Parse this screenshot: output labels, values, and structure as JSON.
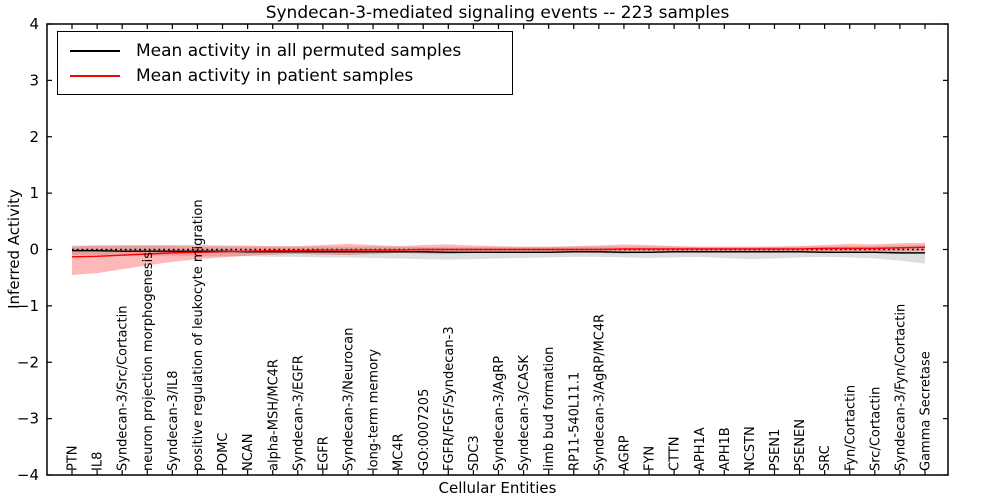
{
  "chart_data": {
    "type": "line",
    "title": "Syndecan-3-mediated signaling events -- 223 samples",
    "xlabel": "Cellular Entities",
    "ylabel": "Inferred Activity",
    "ylim": [
      -4,
      4
    ],
    "yticks": [
      -4,
      -3,
      -2,
      -1,
      0,
      1,
      2,
      3,
      4
    ],
    "grid": false,
    "legend_position": "upper left",
    "zero_line": {
      "value": 0,
      "style": "dotted",
      "color": "#000000"
    },
    "categories": [
      "PTN",
      "IL8",
      "Syndecan-3/Src/Cortactin",
      "neuron projection morphogenesis",
      "Syndecan-3/IL8",
      "positive regulation of leukocyte migration",
      "POMC",
      "NCAN",
      "alpha-MSH/MC4R",
      "Syndecan-3/EGFR",
      "EGFR",
      "Syndecan-3/Neurocan",
      "long-term memory",
      "MC4R",
      "GO:0007205",
      "FGFR/FGF/Syndecan-3",
      "SDC3",
      "Syndecan-3/AgRP",
      "Syndecan-3/CASK",
      "limb bud formation",
      "RP11-540L11.1",
      "Syndecan-3/AgRP/MC4R",
      "AGRP",
      "FYN",
      "CTTN",
      "APH1A",
      "APH1B",
      "NCSTN",
      "PSEN1",
      "PSENEN",
      "SRC",
      "Fyn/Cortactin",
      "Src/Cortactin",
      "Syndecan-3/Fyn/Cortactin",
      "Gamma Secretase"
    ],
    "series": [
      {
        "name": "Mean activity in all permuted samples",
        "color": "#000000",
        "band_color": "rgba(0,0,0,0.13)",
        "values": [
          -0.02,
          -0.02,
          -0.03,
          -0.03,
          -0.03,
          -0.03,
          -0.03,
          -0.04,
          -0.04,
          -0.04,
          -0.04,
          -0.04,
          -0.04,
          -0.04,
          -0.04,
          -0.05,
          -0.05,
          -0.05,
          -0.05,
          -0.05,
          -0.04,
          -0.04,
          -0.05,
          -0.05,
          -0.04,
          -0.04,
          -0.04,
          -0.04,
          -0.04,
          -0.04,
          -0.05,
          -0.05,
          -0.05,
          -0.06,
          -0.06
        ],
        "band_upper": [
          0.07,
          0.07,
          0.06,
          0.06,
          0.06,
          0.05,
          0.05,
          0.05,
          0.05,
          0.05,
          0.05,
          0.05,
          0.05,
          0.05,
          0.04,
          0.04,
          0.04,
          0.04,
          0.04,
          0.04,
          0.05,
          0.05,
          0.05,
          0.05,
          0.05,
          0.04,
          0.04,
          0.04,
          0.05,
          0.05,
          0.05,
          0.06,
          0.06,
          0.07,
          0.08
        ],
        "band_lower": [
          -0.1,
          -0.1,
          -0.11,
          -0.11,
          -0.11,
          -0.12,
          -0.12,
          -0.12,
          -0.13,
          -0.13,
          -0.14,
          -0.14,
          -0.15,
          -0.16,
          -0.17,
          -0.18,
          -0.17,
          -0.16,
          -0.15,
          -0.14,
          -0.13,
          -0.13,
          -0.14,
          -0.15,
          -0.14,
          -0.13,
          -0.15,
          -0.17,
          -0.16,
          -0.14,
          -0.13,
          -0.14,
          -0.16,
          -0.2,
          -0.25
        ]
      },
      {
        "name": "Mean activity in patient samples",
        "color": "#ff0000",
        "band_color": "rgba(255,0,0,0.28)",
        "values": [
          -0.13,
          -0.12,
          -0.1,
          -0.08,
          -0.06,
          -0.05,
          -0.04,
          -0.03,
          -0.02,
          -0.02,
          -0.01,
          -0.01,
          -0.01,
          -0.01,
          0.0,
          0.0,
          0.0,
          0.0,
          0.0,
          0.0,
          0.0,
          0.0,
          0.01,
          0.01,
          0.01,
          0.01,
          0.01,
          0.01,
          0.01,
          0.01,
          0.02,
          0.02,
          0.02,
          0.03,
          0.04
        ],
        "band_upper": [
          0.05,
          0.07,
          0.08,
          0.08,
          0.08,
          0.08,
          0.07,
          0.07,
          0.06,
          0.06,
          0.08,
          0.1,
          0.08,
          0.06,
          0.08,
          0.09,
          0.07,
          0.06,
          0.05,
          0.05,
          0.06,
          0.07,
          0.09,
          0.08,
          0.06,
          0.05,
          0.05,
          0.05,
          0.05,
          0.06,
          0.08,
          0.1,
          0.09,
          0.11,
          0.12
        ],
        "band_lower": [
          -0.45,
          -0.42,
          -0.35,
          -0.28,
          -0.22,
          -0.17,
          -0.14,
          -0.11,
          -0.09,
          -0.08,
          -0.09,
          -0.1,
          -0.08,
          -0.06,
          -0.07,
          -0.08,
          -0.06,
          -0.05,
          -0.04,
          -0.04,
          -0.05,
          -0.06,
          -0.07,
          -0.06,
          -0.05,
          -0.04,
          -0.04,
          -0.04,
          -0.04,
          -0.05,
          -0.05,
          -0.06,
          -0.05,
          -0.04,
          -0.03
        ]
      }
    ]
  },
  "legend": {
    "entries": [
      {
        "label": "Mean activity in all permuted samples",
        "color": "#000000"
      },
      {
        "label": "Mean activity in patient samples",
        "color": "#ff0000"
      }
    ]
  }
}
